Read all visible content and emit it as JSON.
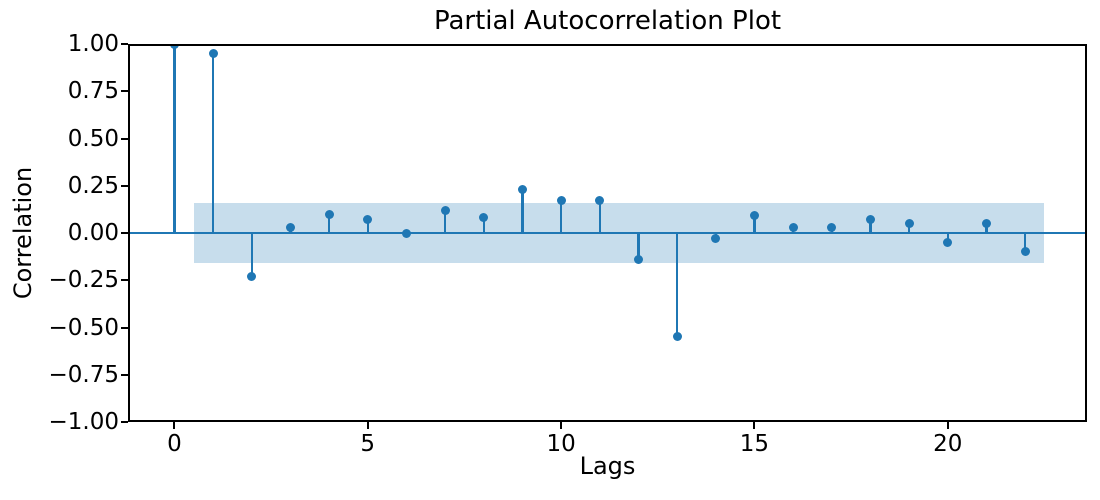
{
  "chart_data": {
    "type": "stem",
    "title": "Partial Autocorrelation Plot",
    "xlabel": "Lags",
    "ylabel": "Correlation",
    "x": [
      0,
      1,
      2,
      3,
      4,
      5,
      6,
      7,
      8,
      9,
      10,
      11,
      12,
      13,
      14,
      15,
      16,
      17,
      18,
      19,
      20,
      21,
      22
    ],
    "values": [
      1.0,
      0.95,
      -0.23,
      0.03,
      0.1,
      0.07,
      0.0,
      0.12,
      0.08,
      0.23,
      0.17,
      0.17,
      -0.14,
      -0.55,
      -0.03,
      0.09,
      0.03,
      0.03,
      0.07,
      0.05,
      -0.05,
      0.05,
      -0.1
    ],
    "confidence_band": {
      "x_start": 0.5,
      "x_end": 22.5,
      "low": -0.16,
      "high": 0.16
    },
    "xlim": [
      -1.2,
      23.6
    ],
    "ylim": [
      -1.0,
      1.0
    ],
    "xticks": {
      "values": [
        0,
        5,
        10,
        15,
        20
      ],
      "labels": [
        "0",
        "5",
        "10",
        "15",
        "20"
      ]
    },
    "yticks": {
      "values": [
        1.0,
        0.75,
        0.5,
        0.25,
        0.0,
        -0.25,
        -0.5,
        -0.75,
        -1.0
      ],
      "labels": [
        "1.00",
        "0.75",
        "0.50",
        "0.25",
        "0.00",
        "−0.25",
        "−0.50",
        "−0.75",
        "−1.00"
      ]
    },
    "grid": false,
    "legend": null,
    "colors": {
      "stem": "#1f77b4",
      "marker": "#1f77b4",
      "zero_line": "#1f77b4",
      "band_fill": "#c7ddec",
      "axis": "#000000",
      "background": "#ffffff"
    }
  }
}
